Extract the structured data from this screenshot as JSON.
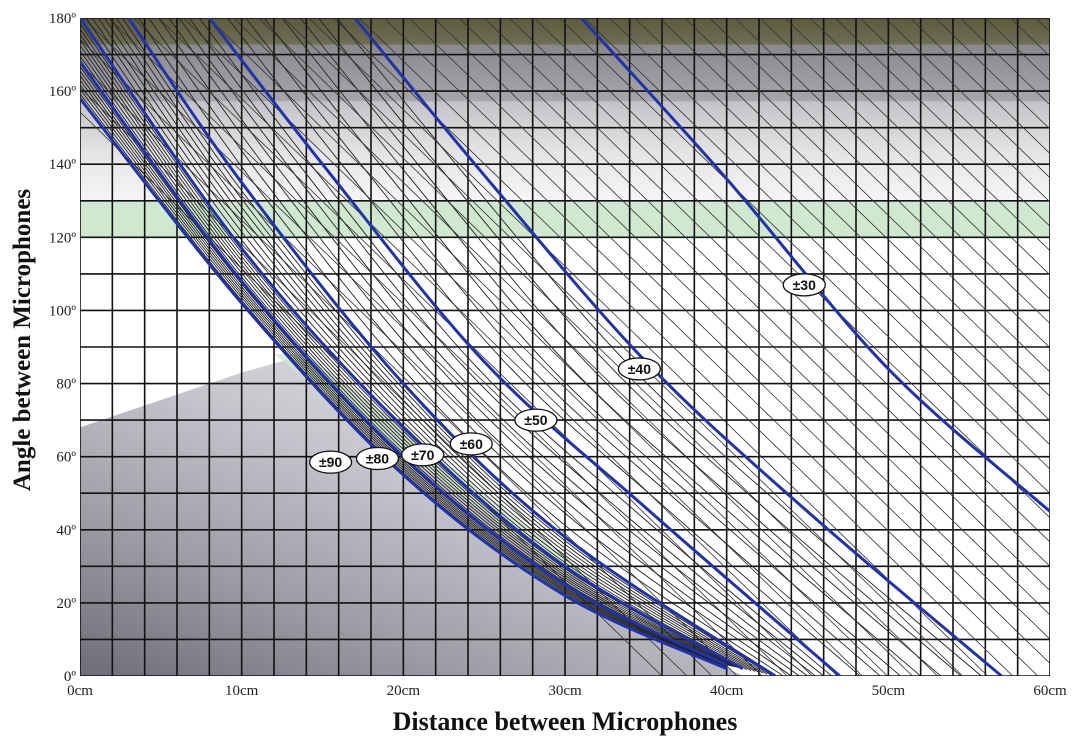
{
  "chart_data": {
    "type": "line",
    "title": "",
    "xlabel": "Distance between Microphones",
    "ylabel": "Angle between Microphones",
    "xlim": [
      0,
      60
    ],
    "ylim": [
      0,
      180
    ],
    "x_ticks": [
      "0cm",
      "10cm",
      "20cm",
      "30cm",
      "40cm",
      "50cm",
      "60cm"
    ],
    "y_ticks": [
      "0º",
      "20º",
      "40º",
      "60º",
      "80º",
      "100º",
      "120º",
      "140º",
      "160º",
      "180º"
    ],
    "grid": true,
    "legend": "none",
    "series": [
      {
        "name": "±90",
        "points": [
          [
            0,
            158
          ],
          [
            10,
            102
          ],
          [
            20,
            55
          ],
          [
            30,
            22
          ],
          [
            40,
            2
          ]
        ]
      },
      {
        "name": "±80",
        "points": [
          [
            0,
            168
          ],
          [
            10,
            108
          ],
          [
            20,
            60
          ],
          [
            30,
            25
          ],
          [
            40,
            3
          ]
        ]
      },
      {
        "name": "±70",
        "points": [
          [
            0,
            180
          ],
          [
            10,
            117
          ],
          [
            20,
            68
          ],
          [
            30,
            30
          ],
          [
            41,
            2
          ]
        ]
      },
      {
        "name": "±60",
        "points": [
          [
            3,
            180
          ],
          [
            10,
            135
          ],
          [
            20,
            80
          ],
          [
            30,
            38
          ],
          [
            43,
            0
          ]
        ]
      },
      {
        "name": "±50",
        "points": [
          [
            8,
            180
          ],
          [
            15,
            140
          ],
          [
            25,
            86
          ],
          [
            35,
            46
          ],
          [
            47,
            0
          ]
        ]
      },
      {
        "name": "±40",
        "points": [
          [
            17,
            180
          ],
          [
            25,
            137
          ],
          [
            35,
            86
          ],
          [
            45,
            45
          ],
          [
            57,
            0
          ]
        ]
      },
      {
        "name": "±30",
        "points": [
          [
            31,
            180
          ],
          [
            40,
            136
          ],
          [
            50,
            84
          ],
          [
            60,
            45
          ]
        ]
      }
    ],
    "colors": {
      "blue_curve": "#2233aa",
      "grid": "#111111",
      "top_band": "#5e5d3e",
      "green_band": "#cfe8cf"
    }
  }
}
